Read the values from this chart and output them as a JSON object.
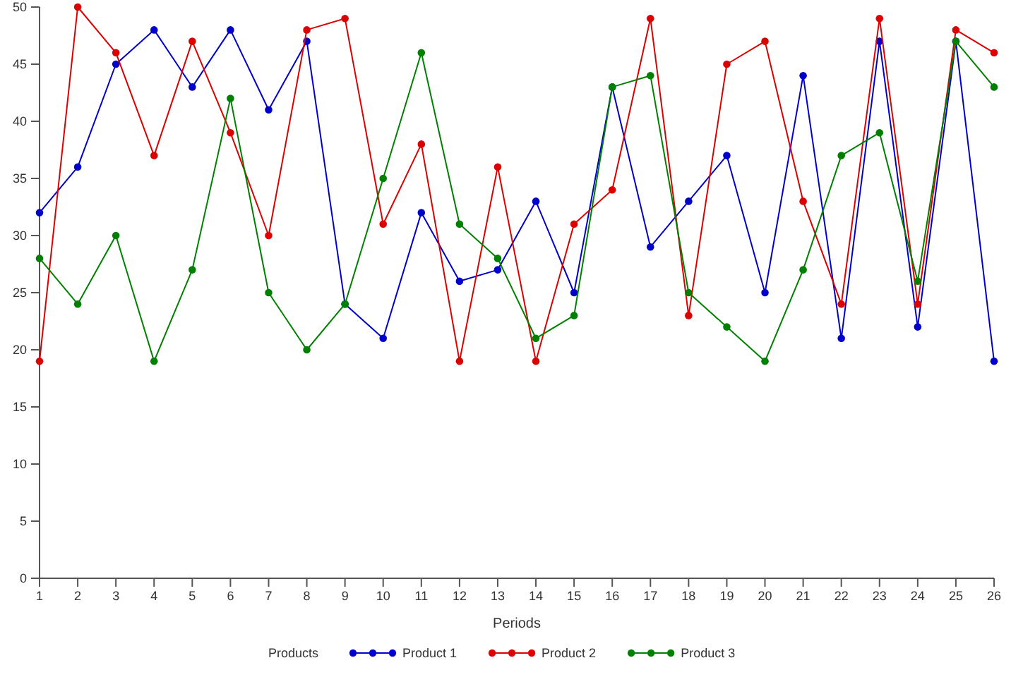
{
  "chart_data": {
    "type": "line",
    "xlabel": "Periods",
    "legend_title": "Products",
    "legend": "bottom",
    "marker": "circle",
    "line_style": "solid",
    "grid": false,
    "x": [
      1,
      2,
      3,
      4,
      5,
      6,
      7,
      8,
      9,
      10,
      11,
      12,
      13,
      14,
      15,
      16,
      17,
      18,
      19,
      20,
      21,
      22,
      23,
      24,
      25,
      26
    ],
    "xlim": [
      1,
      26
    ],
    "xticks": [
      1,
      2,
      3,
      4,
      5,
      6,
      7,
      8,
      9,
      10,
      11,
      12,
      13,
      14,
      15,
      16,
      17,
      18,
      19,
      20,
      21,
      22,
      23,
      24,
      25,
      26
    ],
    "ylim": [
      0,
      50
    ],
    "yticks": [
      0,
      5,
      10,
      15,
      20,
      25,
      30,
      35,
      40,
      45,
      50
    ],
    "series": [
      {
        "name": "Product 1",
        "color": "#0000cc",
        "values": [
          32,
          36,
          45,
          48,
          43,
          48,
          41,
          47,
          24,
          21,
          32,
          26,
          27,
          33,
          25,
          43,
          29,
          33,
          37,
          25,
          44,
          21,
          47,
          22,
          47,
          19
        ]
      },
      {
        "name": "Product 2",
        "color": "#dd0000",
        "values": [
          19,
          50,
          46,
          37,
          47,
          39,
          30,
          48,
          49,
          31,
          38,
          19,
          36,
          19,
          31,
          34,
          49,
          23,
          45,
          47,
          33,
          24,
          49,
          24,
          48,
          46
        ]
      },
      {
        "name": "Product 3",
        "color": "#008000",
        "values": [
          28,
          24,
          30,
          19,
          27,
          42,
          25,
          20,
          24,
          35,
          46,
          31,
          28,
          21,
          23,
          43,
          44,
          25,
          22,
          19,
          27,
          37,
          39,
          26,
          47,
          43
        ]
      }
    ]
  }
}
